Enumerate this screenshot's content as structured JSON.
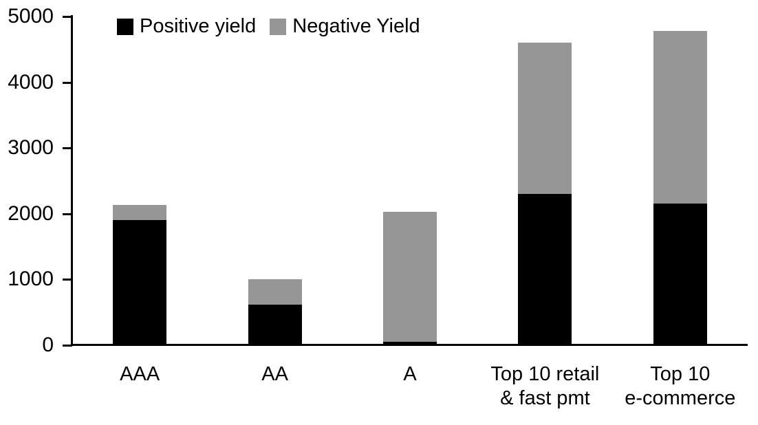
{
  "chart_data": {
    "type": "bar",
    "stacked": true,
    "title": "",
    "xlabel": "",
    "ylabel": "",
    "categories": [
      "AAA",
      "AA",
      "A",
      "Top 10 retail\n& fast pmt",
      "Top 10\ne-commerce"
    ],
    "series": [
      {
        "name": "Positive yield",
        "color": "#000000",
        "values": [
          1900,
          620,
          50,
          2300,
          2150
        ]
      },
      {
        "name": "Negative Yield",
        "color": "#969696",
        "values": [
          230,
          380,
          1980,
          2300,
          2630
        ]
      }
    ],
    "totals": [
      2130,
      1000,
      2030,
      4600,
      4780
    ],
    "ylim": [
      0,
      5000
    ],
    "yticks": [
      0,
      1000,
      2000,
      3000,
      4000,
      5000
    ],
    "grid": false,
    "legend_position": "top-inside",
    "axis_color": "#000000",
    "background_color": "#ffffff"
  }
}
